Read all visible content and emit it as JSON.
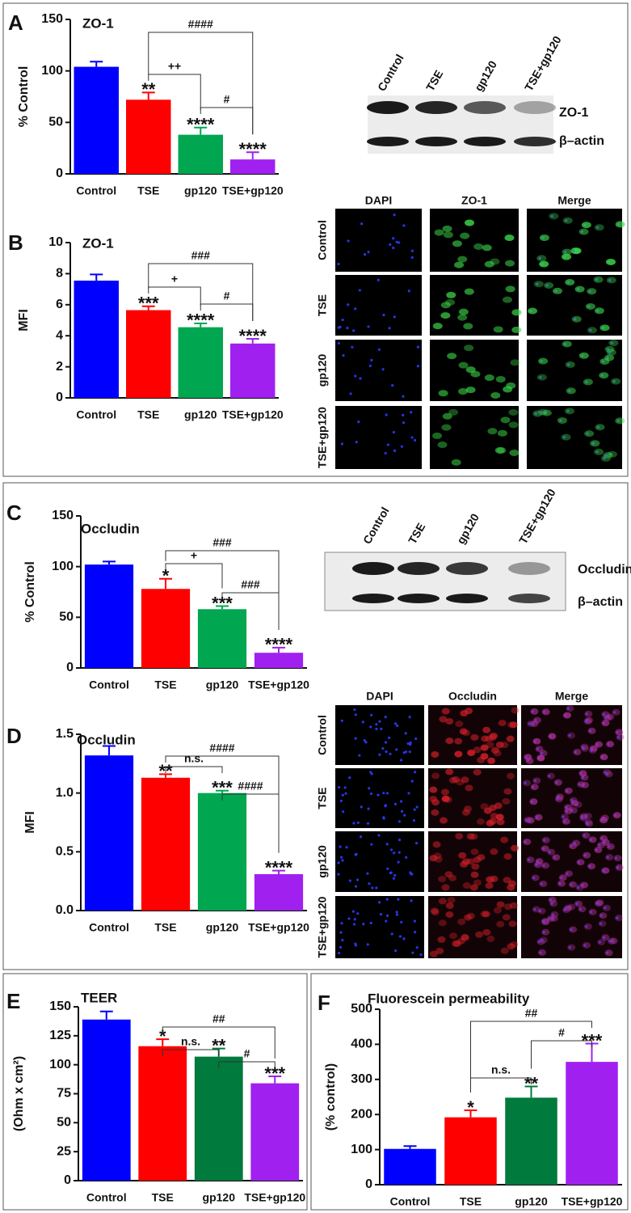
{
  "chart_data": [
    {
      "type": "bar",
      "panel": "A",
      "title": "ZO-1",
      "y_label": "% Control",
      "categories": [
        "Control",
        "TSE",
        "gp120",
        "TSE+gp120"
      ],
      "values": [
        104,
        72,
        38,
        14
      ],
      "errors": [
        5,
        7,
        7,
        7
      ],
      "colors": [
        "#0000ff",
        "#ff0000",
        "#00a650",
        "#a020f0"
      ],
      "ylim": [
        0,
        150
      ],
      "yticks": [
        0,
        50,
        100,
        150
      ],
      "significance": [
        null,
        "**",
        "****",
        "****"
      ],
      "brackets": [
        "####",
        "++",
        "#"
      ]
    },
    {
      "type": "bar",
      "panel": "B",
      "title": "ZO-1",
      "y_label": "MFI",
      "categories": [
        "Control",
        "TSE",
        "gp120",
        "TSE+gp120"
      ],
      "values": [
        7.55,
        5.65,
        4.55,
        3.5
      ],
      "errors": [
        0.4,
        0.25,
        0.25,
        0.3
      ],
      "colors": [
        "#0000ff",
        "#ff0000",
        "#00a650",
        "#a020f0"
      ],
      "ylim": [
        0,
        10
      ],
      "yticks": [
        0,
        2,
        4,
        6,
        8,
        10
      ],
      "significance": [
        null,
        "***",
        "****",
        "****"
      ],
      "brackets": [
        "###",
        "+",
        "#"
      ]
    },
    {
      "type": "bar",
      "panel": "C",
      "title": "Occludin",
      "y_label": "% Control",
      "categories": [
        "Control",
        "TSE",
        "gp120",
        "TSE+gp120"
      ],
      "values": [
        102,
        78,
        58,
        15
      ],
      "errors": [
        3,
        10,
        3,
        5
      ],
      "colors": [
        "#0000ff",
        "#ff0000",
        "#00a650",
        "#a020f0"
      ],
      "ylim": [
        0,
        150
      ],
      "yticks": [
        0,
        50,
        100,
        150
      ],
      "significance": [
        null,
        "*",
        "***",
        "****"
      ],
      "brackets": [
        "###",
        "+",
        "###"
      ]
    },
    {
      "type": "bar",
      "panel": "D",
      "title": "Occludin",
      "y_label": "MFI",
      "categories": [
        "Control",
        "TSE",
        "gp120",
        "TSE+gp120"
      ],
      "values": [
        1.32,
        1.13,
        1.0,
        0.31
      ],
      "errors": [
        0.08,
        0.03,
        0.02,
        0.03
      ],
      "colors": [
        "#0000ff",
        "#ff0000",
        "#00a650",
        "#a020f0"
      ],
      "ylim": [
        0,
        1.5
      ],
      "yticks": [
        {
          "value": 0,
          "label": "0.0"
        },
        {
          "value": 0.5,
          "label": "0.5"
        },
        {
          "value": 1,
          "label": "1.0"
        },
        {
          "value": 1.5,
          "label": "1.5"
        }
      ],
      "significance": [
        null,
        "**",
        "***",
        "****"
      ],
      "brackets": [
        "####",
        "n.s.",
        "####"
      ]
    },
    {
      "type": "bar",
      "panel": "E",
      "title": "TEER",
      "y_label": "(Ohm x cm²)",
      "categories": [
        "Control",
        "TSE",
        "gp120",
        "TSE+gp120"
      ],
      "values": [
        139,
        116,
        107,
        84
      ],
      "errors": [
        7,
        6,
        7,
        6
      ],
      "colors": [
        "#0000ff",
        "#ff0000",
        "#007a3d",
        "#a020f0"
      ],
      "ylim": [
        0,
        150
      ],
      "yticks": [
        0,
        25,
        50,
        75,
        100,
        125,
        150
      ],
      "significance": [
        null,
        "*",
        "**",
        "***"
      ],
      "brackets": [
        "##",
        "n.s.",
        "#"
      ]
    },
    {
      "type": "bar",
      "panel": "F",
      "title": "Fluorescein permeability",
      "y_label": "(% control)",
      "categories": [
        "Control",
        "TSE",
        "gp120",
        "TSE+gp120"
      ],
      "values": [
        102,
        192,
        248,
        350
      ],
      "errors": [
        8,
        20,
        32,
        52
      ],
      "colors": [
        "#0000ff",
        "#ff0000",
        "#007a3d",
        "#a020f0"
      ],
      "ylim": [
        0,
        500
      ],
      "yticks": [
        0,
        100,
        200,
        300,
        400,
        500
      ],
      "significance": [
        null,
        "*",
        "**",
        "***"
      ],
      "brackets": [
        "##",
        "#",
        "n.s."
      ]
    }
  ],
  "blots": [
    {
      "lanes": [
        "Control",
        "TSE",
        "gp120",
        "TSE+gp120"
      ],
      "bands": [
        "ZO-1",
        "β–actin"
      ]
    },
    {
      "lanes": [
        "Control",
        "TSE",
        "gp120",
        "TSE+gp120"
      ],
      "bands": [
        "Occludin",
        "β–actin"
      ]
    }
  ],
  "micrographs": [
    {
      "columns": [
        "DAPI",
        "ZO-1",
        "Merge"
      ],
      "rows": [
        "Control",
        "TSE",
        "gp120",
        "TSE+gp120"
      ]
    },
    {
      "columns": [
        "DAPI",
        "Occludin",
        "Merge"
      ],
      "rows": [
        "Control",
        "TSE",
        "gp120",
        "TSE+gp120"
      ]
    }
  ]
}
